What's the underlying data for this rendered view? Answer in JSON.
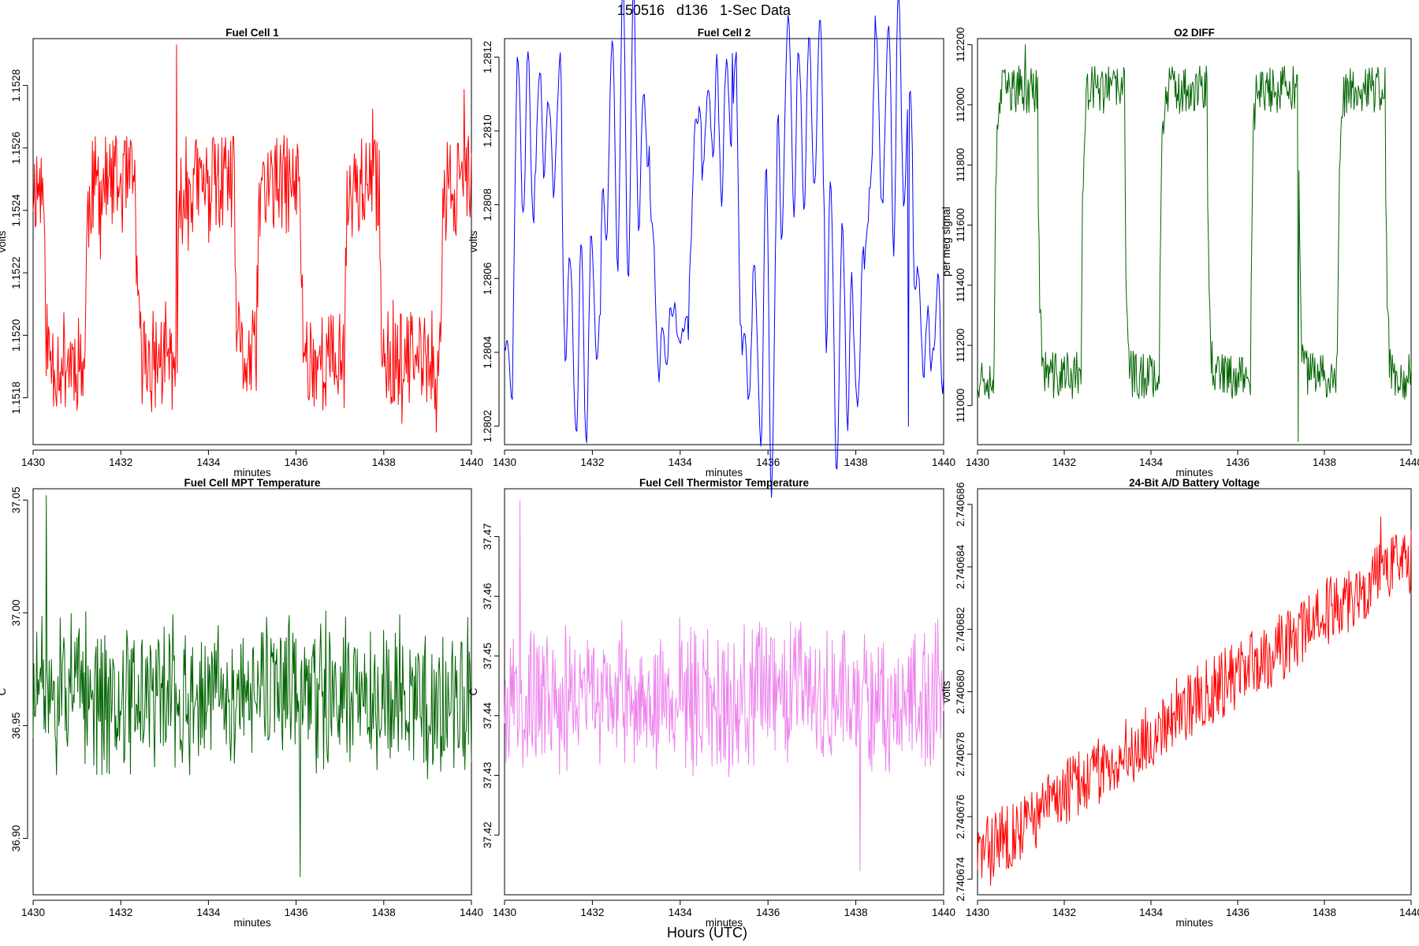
{
  "figure": {
    "title": "150516   d136   1-Sec Data",
    "bottom_label": "Hours (UTC)"
  },
  "chart_data": [
    {
      "type": "line",
      "title": "Fuel Cell 1",
      "xlabel": "minutes",
      "ylabel": "volts",
      "color": "#ff0000",
      "xlim": [
        1430,
        1440
      ],
      "ylim": [
        1.15165,
        1.15295
      ],
      "xticks": [
        1430,
        1432,
        1434,
        1436,
        1438,
        1440
      ],
      "yticks": [
        1.1518,
        1.152,
        1.1522,
        1.1524,
        1.1526,
        1.1528
      ],
      "ytick_labels": [
        "1.1518",
        "1.1520",
        "1.1522",
        "1.1524",
        "1.1526",
        "1.1528"
      ],
      "series": [
        {
          "shape": "square",
          "low": 1.15192,
          "high": 1.15248,
          "noise": 0.00016,
          "spikes": 0.0003,
          "transitions": [
            [
              1430.0,
              1
            ],
            [
              1430.25,
              0
            ],
            [
              1431.2,
              1
            ],
            [
              1432.35,
              0
            ],
            [
              1433.3,
              1
            ],
            [
              1434.6,
              0
            ],
            [
              1435.1,
              1
            ],
            [
              1436.1,
              0
            ],
            [
              1437.1,
              1
            ],
            [
              1437.9,
              0
            ],
            [
              1439.3,
              1
            ]
          ],
          "peak": {
            "x": 1433.27,
            "y": 1.15293
          },
          "min": {
            "x": 1439.2,
            "y": 1.15169
          },
          "seed": 11,
          "n": 600
        }
      ]
    },
    {
      "type": "line",
      "title": "Fuel Cell 2",
      "xlabel": "minutes",
      "ylabel": "volts",
      "color": "#0000ff",
      "xlim": [
        1430,
        1440
      ],
      "ylim": [
        1.28015,
        1.28125
      ],
      "xticks": [
        1430,
        1432,
        1434,
        1436,
        1438,
        1440
      ],
      "yticks": [
        1.2802,
        1.2804,
        1.2806,
        1.2808,
        1.281,
        1.2812
      ],
      "ytick_labels": [
        "1.2802",
        "1.2804",
        "1.2806",
        "1.2808",
        "1.2810",
        "1.2812"
      ],
      "series": [
        {
          "shape": "square",
          "low": 1.28044,
          "high": 1.28103,
          "noise": 0.00012,
          "spikes": 0.0001,
          "transitions": [
            [
              1430.0,
              0
            ],
            [
              1430.2,
              1
            ],
            [
              1431.3,
              0
            ],
            [
              1432.2,
              1
            ],
            [
              1433.3,
              0
            ],
            [
              1434.2,
              1
            ],
            [
              1435.3,
              0
            ],
            [
              1436.2,
              1
            ],
            [
              1437.3,
              0
            ],
            [
              1438.2,
              1
            ],
            [
              1439.3,
              0
            ]
          ],
          "peak": {
            "x": 1435.2,
            "y": 1.28121
          },
          "min": {
            "x": 1439.2,
            "y": 1.2802
          },
          "seed": 23,
          "n": 450,
          "smooth": true
        }
      ]
    },
    {
      "type": "line",
      "title": "O2 DIFF",
      "xlabel": "minutes",
      "ylabel": "per meg signal",
      "color": "#006400",
      "xlim": [
        1430,
        1440
      ],
      "ylim": [
        110870,
        112220
      ],
      "xticks": [
        1430,
        1432,
        1434,
        1436,
        1438,
        1440
      ],
      "yticks": [
        111000,
        111200,
        111400,
        111600,
        111800,
        112000,
        112200
      ],
      "ytick_labels": [
        "111000",
        "111200",
        "111400",
        "111600",
        "111800",
        "112000",
        "112200"
      ],
      "series": [
        {
          "shape": "square",
          "low": 111100,
          "high": 112050,
          "noise": 80,
          "spikes": 60,
          "transitions": [
            [
              1430.0,
              0
            ],
            [
              1430.4,
              1
            ],
            [
              1431.4,
              0
            ],
            [
              1432.4,
              1
            ],
            [
              1433.4,
              0
            ],
            [
              1434.2,
              1
            ],
            [
              1435.3,
              0
            ],
            [
              1436.3,
              1
            ],
            [
              1437.4,
              0
            ],
            [
              1438.3,
              1
            ],
            [
              1439.4,
              0
            ]
          ],
          "peak": {
            "x": 1431.1,
            "y": 112200
          },
          "min": {
            "x": 1437.4,
            "y": 110880
          },
          "seed": 37,
          "n": 600
        }
      ]
    },
    {
      "type": "line",
      "title": "Fuel Cell MPT Temperature",
      "xlabel": "minutes",
      "ylabel": "C",
      "color": "#006400",
      "xlim": [
        1430,
        1440
      ],
      "ylim": [
        36.875,
        37.055
      ],
      "xticks": [
        1430,
        1432,
        1434,
        1436,
        1438,
        1440
      ],
      "yticks": [
        36.9,
        36.95,
        37.0,
        37.05
      ],
      "ytick_labels": [
        "36.90",
        "36.95",
        "37.00",
        "37.05"
      ],
      "series": [
        {
          "shape": "noise",
          "mean": 36.963,
          "amp": 0.04,
          "peak": {
            "x": 1430.3,
            "y": 37.052
          },
          "min": {
            "x": 1436.1,
            "y": 36.883
          },
          "seed": 51,
          "n": 600
        }
      ]
    },
    {
      "type": "line",
      "title": "Fuel Cell Thermistor Temperature",
      "xlabel": "minutes",
      "ylabel": "C",
      "color": "#ee82ee",
      "xlim": [
        1430,
        1440
      ],
      "ylim": [
        37.41,
        37.478
      ],
      "xticks": [
        1430,
        1432,
        1434,
        1436,
        1438,
        1440
      ],
      "yticks": [
        37.42,
        37.43,
        37.44,
        37.45,
        37.46,
        37.47
      ],
      "ytick_labels": [
        "37.42",
        "37.43",
        "37.44",
        "37.45",
        "37.46",
        "37.47"
      ],
      "series": [
        {
          "shape": "noise",
          "mean": 37.443,
          "amp": 0.014,
          "peak": {
            "x": 1430.35,
            "y": 37.476
          },
          "min": {
            "x": 1438.1,
            "y": 37.414
          },
          "seed": 67,
          "n": 600
        }
      ]
    },
    {
      "type": "line",
      "title": "24-Bit A/D Battery Voltage",
      "xlabel": "minutes",
      "ylabel": "volts",
      "color": "#ff0000",
      "xlim": [
        1430,
        1440
      ],
      "ylim": [
        2.7406735,
        2.7406865
      ],
      "xticks": [
        1430,
        1432,
        1434,
        1436,
        1438,
        1440
      ],
      "yticks": [
        2.740674,
        2.740676,
        2.740678,
        2.74068,
        2.740682,
        2.740684,
        2.740686
      ],
      "ytick_labels": [
        "2.740674",
        "2.740676",
        "2.740678",
        "2.740680",
        "2.740682",
        "2.740684",
        "2.740686"
      ],
      "series": [
        {
          "shape": "trend",
          "start": 2.7406748,
          "end": 2.7406835,
          "noise": 1.1e-06,
          "steps": [
            [
              1431.6,
              1e-06
            ],
            [
              1434.2,
              1.2e-06
            ],
            [
              1437.6,
              8e-07
            ]
          ],
          "peak": {
            "x": 1439.3,
            "y": 2.7406856
          },
          "min": {
            "x": 1430.3,
            "y": 2.7406738
          },
          "seed": 83,
          "n": 600
        }
      ]
    }
  ]
}
